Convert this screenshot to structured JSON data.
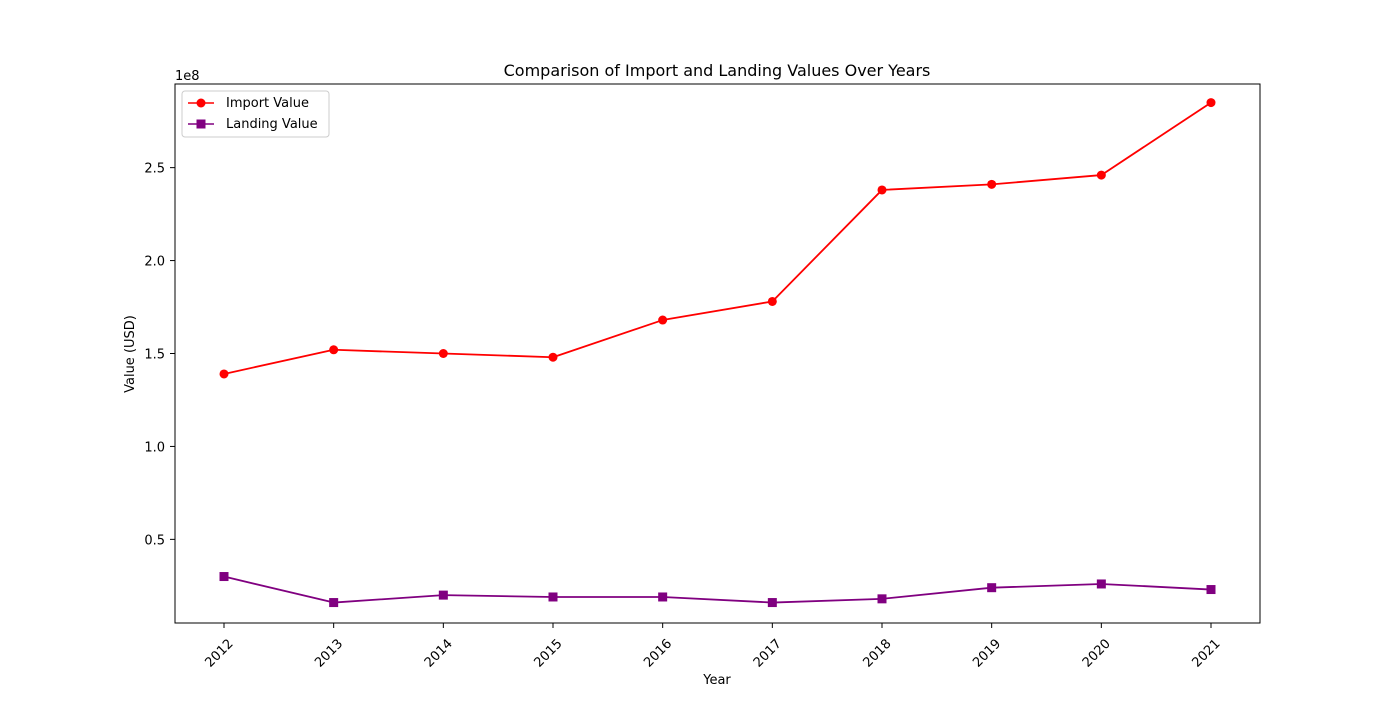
{
  "chart_data": {
    "type": "line",
    "title": "Comparison of Import and Landing Values Over Years",
    "xlabel": "Year",
    "ylabel": "Value (USD)",
    "y_offset_label": "1e8",
    "categories": [
      "2012",
      "2013",
      "2014",
      "2015",
      "2016",
      "2017",
      "2018",
      "2019",
      "2020",
      "2021"
    ],
    "ylim": [
      0.05,
      2.95
    ],
    "y_ticks": [
      "0.5",
      "1.0",
      "1.5",
      "2.0",
      "2.5"
    ],
    "y_unit_multiplier": 100000000,
    "grid": false,
    "legend_position": "upper-left",
    "series": [
      {
        "name": "Import Value",
        "color": "#ff0000",
        "marker": "circle",
        "values": [
          1.39,
          1.52,
          1.5,
          1.48,
          1.68,
          1.78,
          2.38,
          2.41,
          2.46,
          2.85
        ]
      },
      {
        "name": "Landing Value",
        "color": "#800080",
        "marker": "square",
        "values": [
          0.3,
          0.16,
          0.2,
          0.19,
          0.19,
          0.16,
          0.18,
          0.24,
          0.26,
          0.23
        ]
      }
    ]
  }
}
